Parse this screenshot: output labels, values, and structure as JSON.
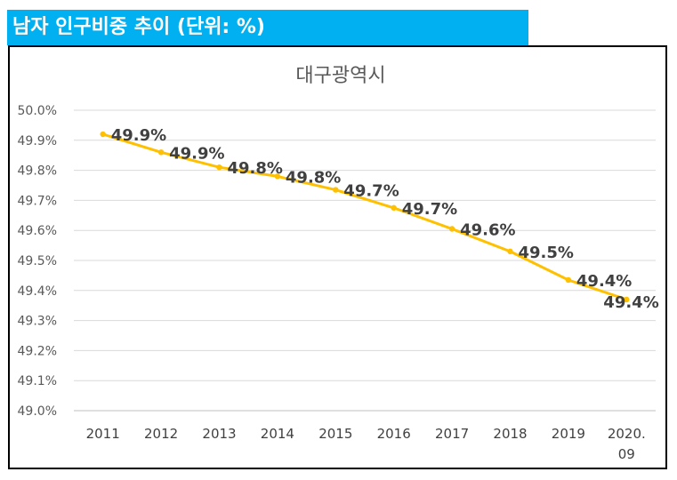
{
  "header": {
    "title": "남자 인구비중 추이 (단위: %)",
    "background_color": "#00b0f0"
  },
  "chart_data": {
    "type": "line",
    "title": "대구광역시",
    "xlabel": "",
    "ylabel": "",
    "categories": [
      "2011",
      "2012",
      "2013",
      "2014",
      "2015",
      "2016",
      "2017",
      "2018",
      "2019",
      "2020.\n09"
    ],
    "series": [
      {
        "name": "남자 인구비중",
        "values": [
          49.92,
          49.86,
          49.81,
          49.78,
          49.735,
          49.675,
          49.605,
          49.53,
          49.435,
          49.37
        ],
        "data_labels": [
          "49.9%",
          "49.9%",
          "49.8%",
          "49.8%",
          "49.7%",
          "49.7%",
          "49.6%",
          "49.5%",
          "49.4%",
          "49.4%"
        ],
        "color": "#ffc000"
      }
    ],
    "ylim": [
      49.0,
      50.0
    ],
    "yticks": [
      49.0,
      49.1,
      49.2,
      49.3,
      49.4,
      49.5,
      49.6,
      49.7,
      49.8,
      49.9,
      50.0
    ],
    "ytick_labels": [
      "49.0%",
      "49.1%",
      "49.2%",
      "49.3%",
      "49.4%",
      "49.5%",
      "49.6%",
      "49.7%",
      "49.8%",
      "49.9%",
      "50.0%"
    ],
    "grid": true,
    "legend": "none"
  }
}
